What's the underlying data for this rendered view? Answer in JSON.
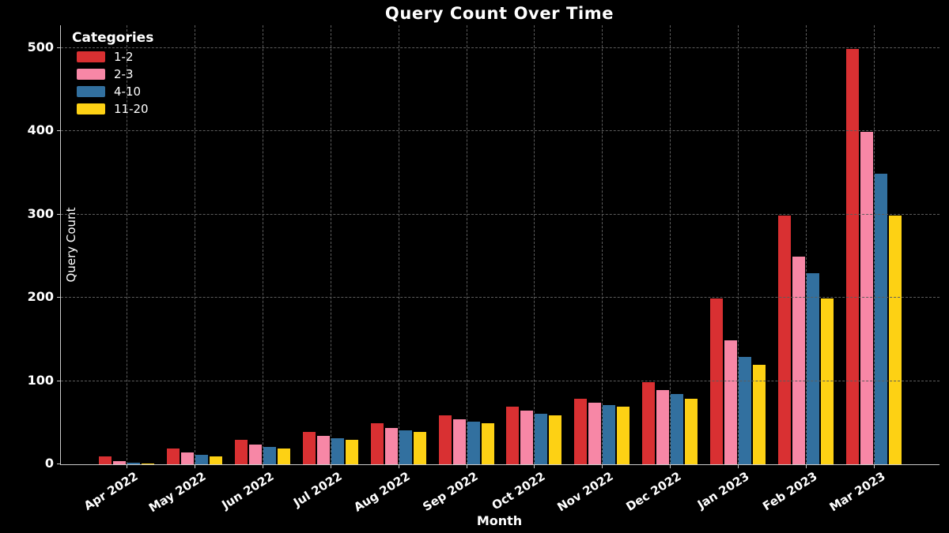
{
  "chart_data": {
    "type": "bar",
    "title": "Query Count Over Time",
    "xlabel": "Month",
    "ylabel": "Query Count",
    "legend_title": "Categories",
    "legend_position": "upper-left",
    "background": "#000000",
    "grid": true,
    "grid_style": "dashed",
    "categories": [
      "Apr 2022",
      "May 2022",
      "Jun 2022",
      "Jul 2022",
      "Aug 2022",
      "Sep 2022",
      "Oct 2022",
      "Nov 2022",
      "Dec 2022",
      "Jan 2023",
      "Feb 2023",
      "Mar 2023"
    ],
    "series": [
      {
        "name": "1-2",
        "color": "#d93032",
        "values": [
          10,
          20,
          30,
          40,
          50,
          60,
          70,
          80,
          100,
          200,
          300,
          500
        ]
      },
      {
        "name": "2-3",
        "color": "#f787a6",
        "values": [
          5,
          15,
          25,
          35,
          45,
          55,
          65,
          75,
          90,
          150,
          250,
          400
        ]
      },
      {
        "name": "4-10",
        "color": "#32709f",
        "values": [
          3,
          12,
          22,
          32,
          42,
          52,
          62,
          72,
          85,
          130,
          230,
          350
        ]
      },
      {
        "name": "11-20",
        "color": "#fdd114",
        "values": [
          2,
          10,
          20,
          30,
          40,
          50,
          60,
          70,
          80,
          120,
          200,
          300
        ]
      }
    ],
    "yticks": [
      0,
      100,
      200,
      300,
      400,
      500
    ],
    "ylim": [
      0,
      527
    ]
  }
}
